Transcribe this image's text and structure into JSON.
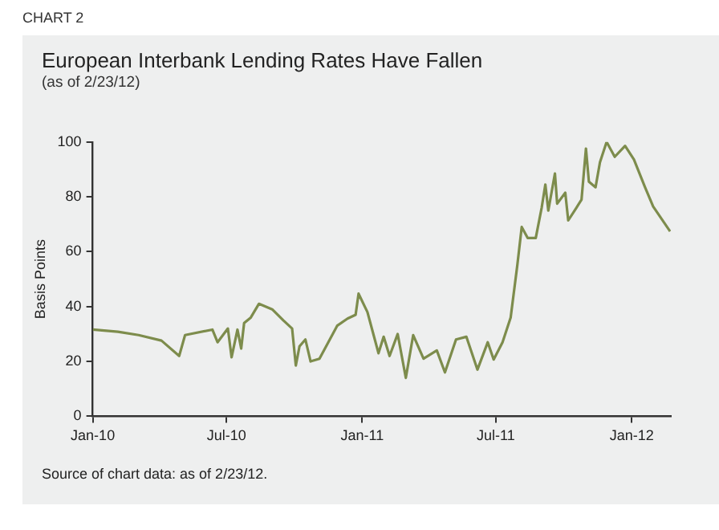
{
  "chart_data": {
    "type": "line",
    "title": "European Interbank Lending Rates Have Fallen",
    "subtitle": "(as of 2/23/12)",
    "ylabel": "Basis Points",
    "annotations": [
      "CHART 2",
      "Source of chart data: as of 2/23/12."
    ],
    "x": [
      "2010-01-01",
      "2010-02-04",
      "2010-03-04",
      "2010-04-04",
      "2010-04-28",
      "2010-05-06",
      "2010-06-12",
      "2010-06-19",
      "2010-07-03",
      "2010-07-08",
      "2010-07-16",
      "2010-07-21",
      "2010-07-25",
      "2010-08-03",
      "2010-08-14",
      "2010-09-01",
      "2010-09-16",
      "2010-09-28",
      "2010-10-03",
      "2010-10-08",
      "2010-10-16",
      "2010-10-23",
      "2010-11-04",
      "2010-11-16",
      "2010-11-28",
      "2010-12-12",
      "2010-12-23",
      "2010-12-27",
      "2011-01-08",
      "2011-01-15",
      "2011-01-23",
      "2011-01-30",
      "2011-02-07",
      "2011-02-18",
      "2011-03-01",
      "2011-03-11",
      "2011-03-25",
      "2011-04-12",
      "2011-04-23",
      "2011-05-08",
      "2011-05-22",
      "2011-06-06",
      "2011-06-20",
      "2011-06-28",
      "2011-07-10",
      "2011-07-21",
      "2011-07-30",
      "2011-08-05",
      "2011-08-13",
      "2011-08-24",
      "2011-09-01",
      "2011-09-06",
      "2011-09-10",
      "2011-09-19",
      "2011-09-22",
      "2011-10-03",
      "2011-10-07",
      "2011-10-18",
      "2011-10-25",
      "2011-10-31",
      "2011-11-04",
      "2011-11-13",
      "2011-11-19",
      "2011-11-28",
      "2011-12-09",
      "2011-12-23",
      "2012-01-04",
      "2012-01-19",
      "2012-01-30",
      "2012-02-22"
    ],
    "series": [
      {
        "color": "#7d8c4c",
        "values": [
          31.6,
          30.8,
          29.6,
          27.6,
          22,
          29.6,
          31.6,
          27,
          32,
          21.5,
          31.6,
          24.7,
          34,
          36,
          41,
          39,
          35,
          32,
          18.5,
          25.5,
          28,
          20,
          21,
          27,
          33,
          35.6,
          37,
          44.7,
          38,
          31,
          23,
          29,
          22,
          30,
          14,
          29.6,
          21,
          24,
          16,
          28,
          29,
          17,
          27,
          20.7,
          27,
          36,
          55,
          69,
          65,
          65,
          76,
          84.5,
          75,
          88.5,
          77.5,
          81.5,
          71.4,
          76,
          79,
          97.6,
          85.5,
          83.5,
          92.6,
          100,
          94.6,
          98.6,
          93.6,
          83.5,
          76.5,
          67.4
        ]
      }
    ],
    "xlim": [
      "2010-01-01",
      "2012-02-23"
    ],
    "xticks": [
      {
        "value": "2010-01-01",
        "label": "Jan-10"
      },
      {
        "value": "2010-07-01",
        "label": "Jul-10"
      },
      {
        "value": "2011-01-01",
        "label": "Jan-11"
      },
      {
        "value": "2011-07-01",
        "label": "Jul-11"
      },
      {
        "value": "2012-01-01",
        "label": "Jan-12"
      }
    ],
    "ylim": [
      0,
      100
    ],
    "yticks": [
      0,
      20,
      40,
      60,
      80,
      100
    ],
    "grid": false,
    "legend": false,
    "marker": "none",
    "line_style": "solid"
  }
}
